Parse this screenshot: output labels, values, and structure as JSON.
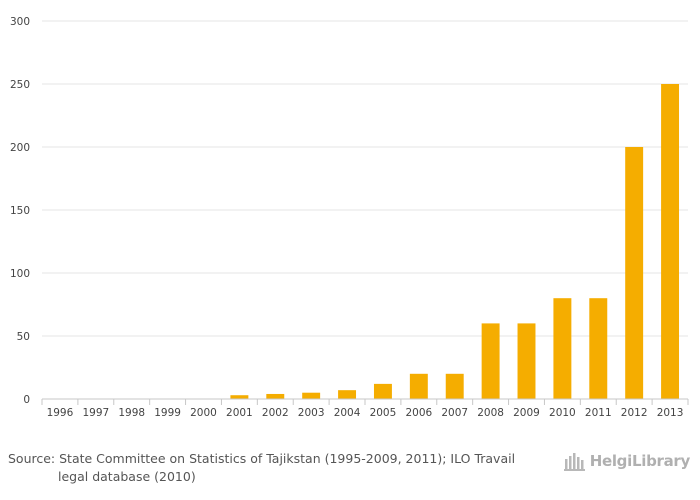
{
  "chart_data": {
    "type": "bar",
    "categories": [
      "1996",
      "1997",
      "1998",
      "1999",
      "2000",
      "2001",
      "2002",
      "2003",
      "2004",
      "2005",
      "2006",
      "2007",
      "2008",
      "2009",
      "2010",
      "2011",
      "2012",
      "2013"
    ],
    "values": [
      0,
      0,
      0,
      0,
      0,
      3,
      4,
      5,
      7,
      12,
      20,
      20,
      60,
      60,
      80,
      80,
      200,
      250
    ],
    "ylim": [
      0,
      300
    ],
    "yticks": [
      0,
      50,
      100,
      150,
      200,
      250,
      300
    ],
    "bar_color": "#f5ad00",
    "grid": true,
    "legend": "none"
  },
  "footer": {
    "source_line1": "Source: State Committee on Statistics of Tajikstan (1995-2009, 2011); ILO Travail",
    "source_line2": "legal database (2010)",
    "logo_text": "HelgiLibrary",
    "logo_icon": "helgi-library-logo"
  }
}
